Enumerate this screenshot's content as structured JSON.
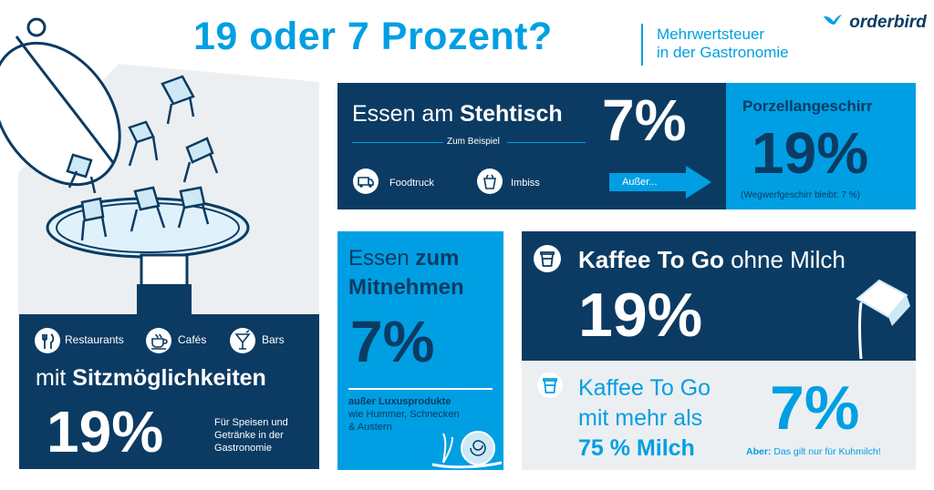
{
  "header": {
    "title": "19 oder 7 Prozent?",
    "subtitle_line1": "Mehrwertsteuer",
    "subtitle_line2": "in der Gastronomie",
    "logo": "orderbird"
  },
  "seating": {
    "restaurants": "Restaurants",
    "cafes": "Cafés",
    "bars": "Bars",
    "heading_prefix": "mit ",
    "heading_bold": "Sitzmöglichkeiten",
    "percent": "19%",
    "note_line1": "Für Speisen und",
    "note_line2": "Getränke in der",
    "note_line3": "Gastronomie"
  },
  "stehtisch": {
    "heading_prefix": "Essen am ",
    "heading_bold": "Stehtisch",
    "example_label": "Zum Beispiel",
    "foodtruck": "Foodtruck",
    "imbiss": "Imbiss",
    "percent": "7%",
    "exception_arrow": "Außer..."
  },
  "porzellan": {
    "heading": "Porzellangeschirr",
    "percent": "19%",
    "note": "(Wegwerfgeschirr bleibt: 7 %)"
  },
  "mitnehmen": {
    "line1_regular": "Essen ",
    "line1_bold": "zum",
    "line2_bold": "Mitnehmen",
    "percent": "7%",
    "exception_bold": "außer Luxusprodukte",
    "exception_line2": "wie Hummer, Schnecken",
    "exception_line3": "& Austern"
  },
  "coffee_black": {
    "heading_bold": "Kaffee To Go",
    "heading_regular": " ohne Milch",
    "percent": "19%"
  },
  "coffee_milk": {
    "line1": "Kaffee To Go",
    "line2": "mit mehr als",
    "line3_bold": "75 % Milch",
    "percent": "7%",
    "note_bold": "Aber:",
    "note_regular": " Das gilt nur für Kuhmilch!"
  },
  "colors": {
    "navy": "#0b3b63",
    "cyan": "#009fe3",
    "light_gray": "#eceff1",
    "white": "#ffffff"
  },
  "icons": [
    "cloche-icon",
    "chair-icon",
    "fork-knife-icon",
    "coffee-cup-icon",
    "cocktail-glass-icon",
    "foodtruck-icon",
    "takeaway-box-icon",
    "arrow-right-icon",
    "coffee-to-go-icon",
    "milk-carton-icon",
    "snail-icon",
    "bird-logo-icon"
  ]
}
